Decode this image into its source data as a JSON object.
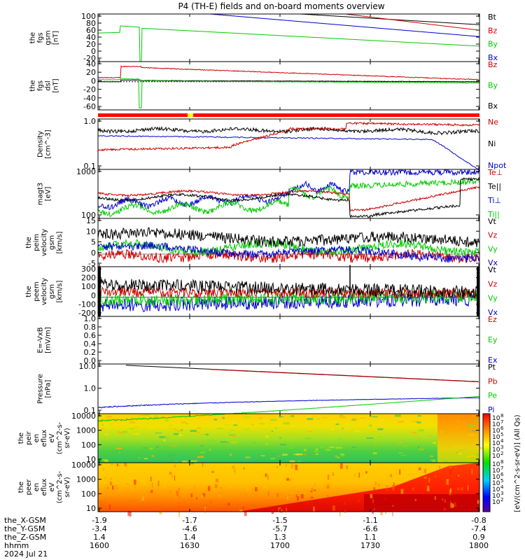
{
  "chart_data": {
    "type": "line",
    "title": "P4 (TH-E) fields and on-board moments overview",
    "time_ticks": [
      "1600",
      "1630",
      "1700",
      "1730",
      "1800"
    ],
    "ephemeris_rows": [
      {
        "label": "the_X-GSM",
        "values": [
          "-1.9",
          "-1.7",
          "-1.5",
          "-1.1",
          "-0.8"
        ]
      },
      {
        "label": "the_Y-GSM",
        "values": [
          "-3.4",
          "-4.6",
          "-5.7",
          "-6.6",
          "-7.4"
        ]
      },
      {
        "label": "the_Z-GSM",
        "values": [
          "1.4",
          "1.4",
          "1.3",
          "1.1",
          "0.9"
        ]
      },
      {
        "label": "hhmm",
        "values": [
          "1600",
          "1630",
          "1700",
          "1730",
          "1800"
        ]
      }
    ],
    "date_label": "2024 Jul 21",
    "colorbar_label": "[eV/(cm^2-s-sr-eV)] (All Qs)",
    "colorbar_exps": [
      "8",
      "7",
      "6",
      "5",
      "4",
      "3",
      "2"
    ],
    "colorbar_exps2": [
      "8",
      "7",
      "6",
      "5",
      "4",
      "3",
      "2"
    ],
    "panels": [
      {
        "id": "fgs_gsm",
        "ylabel": [
          "the",
          "fgs",
          "gsm",
          "[nT]"
        ],
        "yticks": [
          "100",
          "80",
          "60",
          "40",
          "20",
          "0",
          "-20"
        ],
        "ymin": -20,
        "ymax": 100,
        "legend": [
          {
            "text": "Bt",
            "color": "#000000"
          },
          {
            "text": "Bz",
            "color": "#cc0000"
          },
          {
            "text": "By",
            "color": "#00cc00"
          },
          {
            "text": "Bx",
            "color": "#0000cc"
          }
        ]
      },
      {
        "id": "fgs_dsl",
        "ylabel": [
          "the",
          "fgs",
          "dsl",
          "[nT]"
        ],
        "yticks": [
          "40",
          "20",
          "0",
          "-20",
          "-40",
          "-60"
        ],
        "ymin": -70,
        "ymax": 50,
        "legend": [
          {
            "text": "Bz",
            "color": "#cc0000"
          },
          {
            "text": "By",
            "color": "#00cc00"
          },
          {
            "text": "Bx",
            "color": "#000000"
          }
        ]
      },
      {
        "id": "density",
        "ylabel": [
          "Density",
          "[cm^-3]"
        ],
        "yticks": [
          "1.0",
          "0.1"
        ],
        "log": true,
        "ymin": 0.05,
        "ymax": 4,
        "legend": [
          {
            "text": "Ne",
            "color": "#cc0000"
          },
          {
            "text": "Ni",
            "color": "#000000"
          },
          {
            "text": "Npot",
            "color": "#0000cc"
          }
        ]
      },
      {
        "id": "temp",
        "ylabel": [
          "magt3",
          "[eV]"
        ],
        "yticks": [
          "1000",
          "100"
        ],
        "log": true,
        "ymin": 100,
        "ymax": 5000,
        "legend": [
          {
            "text": "Te⊥",
            "color": "#cc0000"
          },
          {
            "text": "Te||",
            "color": "#000000"
          },
          {
            "text": "Ti⊥",
            "color": "#0000cc"
          },
          {
            "text": "Ti||",
            "color": "#00cc00"
          }
        ]
      },
      {
        "id": "ve",
        "ylabel": [
          "the",
          "peim",
          "velocity",
          "gsm",
          "[km/s]"
        ],
        "yticks": [
          "15",
          "10",
          "5",
          "0",
          "-5"
        ],
        "ymin": -6,
        "ymax": 17,
        "legend": [
          {
            "text": "Vt",
            "color": "#000000"
          },
          {
            "text": "Vz",
            "color": "#cc0000"
          },
          {
            "text": "Vy",
            "color": "#00cc00"
          },
          {
            "text": "Vx",
            "color": "#0000cc"
          }
        ]
      },
      {
        "id": "vi",
        "ylabel": [
          "the",
          "peem",
          "velocity",
          "gsm",
          "[km/s]"
        ],
        "yticks": [
          "300",
          "200",
          "100",
          "0",
          "-100",
          "-200"
        ],
        "ymin": -230,
        "ymax": 360,
        "legend": [
          {
            "text": "Vt",
            "color": "#000000"
          },
          {
            "text": "Vz",
            "color": "#cc0000"
          },
          {
            "text": "Vy",
            "color": "#00cc00"
          },
          {
            "text": "Vx",
            "color": "#0000cc"
          }
        ]
      },
      {
        "id": "efield",
        "ylabel": [
          "E=-VxB",
          "[mV/m]"
        ],
        "yticks": [
          "1.0",
          "0.8",
          "0.6",
          "0.4",
          "0.2",
          "0.0"
        ],
        "ymin": 0,
        "ymax": 1,
        "legend": [
          {
            "text": "Ez",
            "color": "#cc0000"
          },
          {
            "text": "Ey",
            "color": "#00cc00"
          },
          {
            "text": "Ex",
            "color": "#0000cc"
          }
        ]
      },
      {
        "id": "pressure",
        "ylabel": [
          "Pressure",
          "[nPa]"
        ],
        "yticks": [
          "10.0",
          "1.0",
          "0.1"
        ],
        "log": true,
        "ymin": 0.02,
        "ymax": 30,
        "legend": [
          {
            "text": "Pt",
            "color": "#000000"
          },
          {
            "text": "Pb",
            "color": "#cc0000"
          },
          {
            "text": "Pe",
            "color": "#00cc00"
          },
          {
            "text": "Pi",
            "color": "#0000cc"
          }
        ]
      },
      {
        "id": "ion_spec",
        "ylabel": [
          "the",
          "peir",
          "en",
          "eflux",
          "eV",
          "(cm^2-s-",
          "sr-eV)"
        ],
        "yticks": [
          "10000",
          "1000",
          "100",
          "10"
        ]
      },
      {
        "id": "ele_spec",
        "ylabel": [
          "the",
          "peer",
          "en",
          "eflux",
          "eV",
          "(cm^2-s-",
          "sr-eV)"
        ],
        "yticks": [
          "10000",
          "1000",
          "100",
          "10"
        ]
      }
    ]
  }
}
